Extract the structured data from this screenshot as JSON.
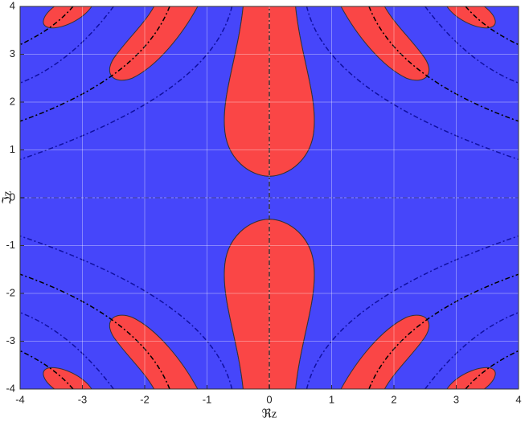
{
  "chart_data": {
    "type": "region",
    "xlabel": "ℜz",
    "ylabel": "ℑz",
    "xlim": [
      -4,
      4
    ],
    "ylim": [
      -4,
      4
    ],
    "xticks": [
      -4,
      -3,
      -2,
      -1,
      0,
      1,
      2,
      3,
      4
    ],
    "yticks": [
      -4,
      -3,
      -2,
      -1,
      0,
      1,
      2,
      3,
      4
    ],
    "grid": true
  }
}
